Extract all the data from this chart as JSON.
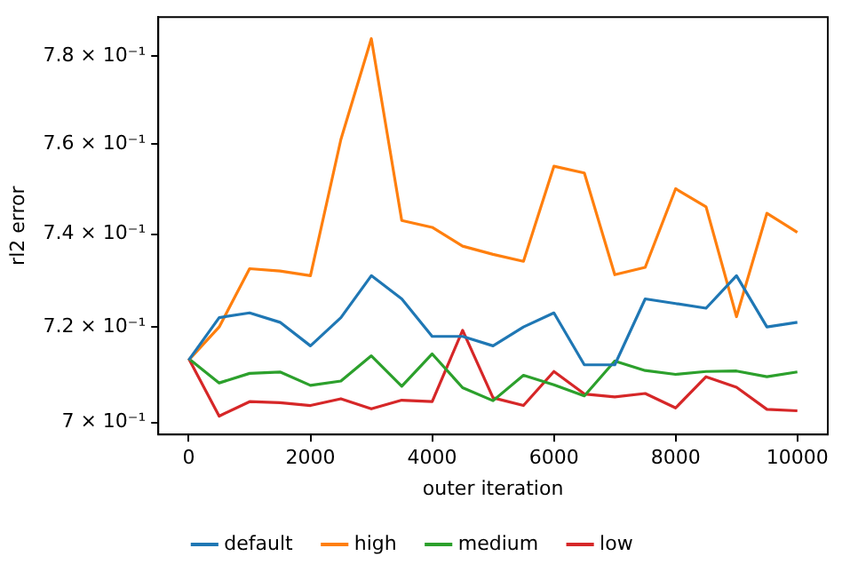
{
  "chart_data": {
    "type": "line",
    "xlabel": "outer iteration",
    "ylabel": "rl2 error",
    "log": "y",
    "legend": "bottom",
    "marker": "none",
    "line_style": "solid",
    "x": [
      0,
      500,
      1000,
      1500,
      2000,
      2500,
      3000,
      3500,
      4000,
      4500,
      5000,
      5500,
      6000,
      6500,
      7000,
      7500,
      8000,
      8500,
      9000,
      9500,
      10000
    ],
    "xlim": [
      -500,
      10500
    ],
    "xticks": [
      0,
      2000,
      4000,
      6000,
      8000,
      10000
    ],
    "ylim": [
      0.6975,
      0.789
    ],
    "yticks": [
      {
        "value": 0.7,
        "label": "7 × 10⁻¹"
      },
      {
        "value": 0.72,
        "label": "7.2 × 10⁻¹"
      },
      {
        "value": 0.74,
        "label": "7.4 × 10⁻¹"
      },
      {
        "value": 0.76,
        "label": "7.6 × 10⁻¹"
      },
      {
        "value": 0.78,
        "label": "7.8 × 10⁻¹"
      }
    ],
    "series": [
      {
        "name": "default",
        "color": "#1f77b4",
        "values": [
          0.713,
          0.722,
          0.723,
          0.721,
          0.716,
          0.722,
          0.731,
          0.726,
          0.718,
          0.718,
          0.716,
          0.72,
          0.723,
          0.712,
          0.712,
          0.726,
          0.725,
          0.724,
          0.731,
          0.72,
          0.721
        ]
      },
      {
        "name": "high",
        "color": "#ff7f0e",
        "values": [
          0.713,
          0.72,
          0.7325,
          0.732,
          0.731,
          0.761,
          0.784,
          0.743,
          0.7415,
          0.7374,
          0.7356,
          0.7341,
          0.755,
          0.7535,
          0.7312,
          0.7328,
          0.75,
          0.746,
          0.7222,
          0.7446,
          0.7404
        ]
      },
      {
        "name": "medium",
        "color": "#2ca02c",
        "values": [
          0.7133,
          0.7082,
          0.7102,
          0.7105,
          0.7077,
          0.7086,
          0.7139,
          0.7075,
          0.7143,
          0.7072,
          0.7045,
          0.7098,
          0.7078,
          0.7055,
          0.7128,
          0.7108,
          0.71,
          0.7106,
          0.7107,
          0.7095,
          0.7105
        ]
      },
      {
        "name": "low",
        "color": "#d62728",
        "values": [
          0.7133,
          0.7013,
          0.7043,
          0.7041,
          0.7035,
          0.7049,
          0.7028,
          0.7046,
          0.7043,
          0.7193,
          0.7051,
          0.7035,
          0.7106,
          0.7059,
          0.7053,
          0.706,
          0.703,
          0.7095,
          0.7073,
          0.7027,
          0.7024
        ]
      }
    ]
  }
}
